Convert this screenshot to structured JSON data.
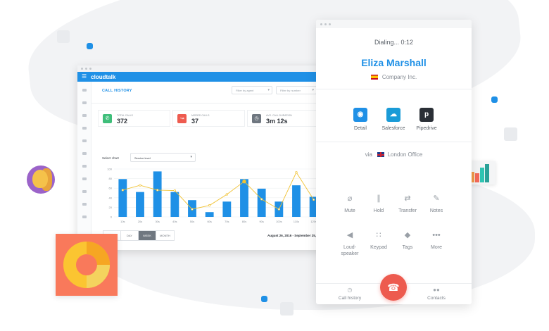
{
  "colors": {
    "accent": "#1f90e6",
    "hangup": "#ed5b4f",
    "line": "#f1c232",
    "total_calls": "#3fbe7a",
    "missed_calls": "#ee5b4f",
    "avg_duration": "#6f7780",
    "salesforce": "#1a9bd7",
    "pipedrive": "#2a2f36"
  },
  "dashboard": {
    "logo": "cloudtalk",
    "menu_icon": "hamburger-icon",
    "page_title": "CALL HISTORY",
    "filters": [
      {
        "placeholder": "Filter by agent"
      },
      {
        "placeholder": "Filter by number"
      }
    ],
    "stats": [
      {
        "label": "TOTAL CALLS",
        "value": "372",
        "icon": "phone-icon"
      },
      {
        "label": "MISSED CALLS",
        "value": "37",
        "icon": "missed-call-icon"
      },
      {
        "label": "AVG. CALL DURATION",
        "value": "3m 12s",
        "icon": "clock-icon"
      }
    ],
    "select_chart_label": "Select chart",
    "select_chart_value": "Service level",
    "range_tabs": [
      "",
      "DAY",
      "WEEK",
      "MONTH"
    ],
    "active_range": "WEEK",
    "date_range": "August 26, 2016 - September 25, 20"
  },
  "chart_data": {
    "type": "bar",
    "categories": [
      "10s",
      "20s",
      "30s",
      "40s",
      "50s",
      "60s",
      "70s",
      "80s",
      "90s",
      "100s",
      "110s",
      "120s"
    ],
    "yticks": [
      0,
      20,
      40,
      60,
      80,
      100
    ],
    "ylim": [
      0,
      100
    ],
    "series": [
      {
        "type": "bar",
        "values": [
          79,
          52,
          95,
          52,
          35,
          10,
          32,
          79,
          59,
          32,
          66,
          42
        ]
      },
      {
        "type": "line",
        "values": [
          56,
          66,
          56,
          55,
          16,
          24,
          47,
          74,
          37,
          16,
          93,
          36
        ]
      }
    ],
    "grid": true
  },
  "phone": {
    "status": "Dialing... 0:12",
    "caller_name": "Eliza Marshall",
    "company": "Company Inc.",
    "integrations": [
      {
        "label": "Detail",
        "icon": "person-icon",
        "glyph": "◉"
      },
      {
        "label": "Salesforce",
        "icon": "salesforce-icon",
        "glyph": "☁"
      },
      {
        "label": "Pipedrive",
        "icon": "pipedrive-icon",
        "glyph": "p"
      }
    ],
    "via_label": "via",
    "via_office": "London Office",
    "controls": [
      {
        "label": "Mute",
        "icon": "mute-icon",
        "glyph": "⌀"
      },
      {
        "label": "Hold",
        "icon": "pause-icon",
        "glyph": "∥"
      },
      {
        "label": "Transfer",
        "icon": "transfer-icon",
        "glyph": "⇄"
      },
      {
        "label": "Notes",
        "icon": "pencil-icon",
        "glyph": "✎"
      },
      {
        "label": "Loud-\nspeaker",
        "icon": "speaker-icon",
        "glyph": "◀"
      },
      {
        "label": "Keypad",
        "icon": "keypad-icon",
        "glyph": "∷"
      },
      {
        "label": "Tags",
        "icon": "tag-icon",
        "glyph": "◆"
      },
      {
        "label": "More",
        "icon": "more-icon",
        "glyph": "•••"
      }
    ],
    "bottom_left": "Call history",
    "bottom_right": "Contacts",
    "hangup_icon": "hangup-icon"
  }
}
